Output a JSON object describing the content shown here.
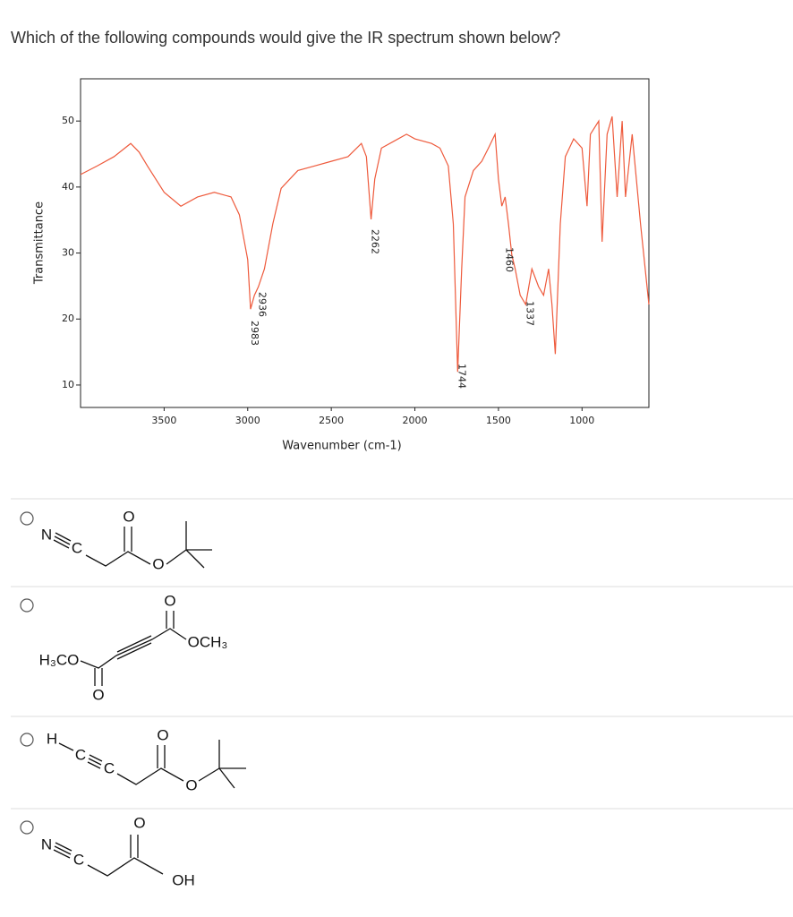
{
  "question": "Which of the following compounds would give the IR spectrum shown below?",
  "chart_data": {
    "type": "line",
    "xlabel": "Wavenumber (cm-1)",
    "ylabel": "Transmittance",
    "x": [
      4000,
      3900,
      3800,
      3700,
      3650,
      3600,
      3500,
      3400,
      3300,
      3200,
      3100,
      3050,
      3000,
      2983,
      2960,
      2936,
      2900,
      2850,
      2800,
      2700,
      2600,
      2500,
      2400,
      2320,
      2290,
      2262,
      2240,
      2200,
      2100,
      2050,
      2000,
      1900,
      1850,
      1800,
      1770,
      1744,
      1720,
      1700,
      1650,
      1600,
      1560,
      1520,
      1500,
      1480,
      1460,
      1440,
      1420,
      1400,
      1370,
      1337,
      1300,
      1260,
      1230,
      1200,
      1180,
      1160,
      1130,
      1100,
      1050,
      1000,
      970,
      950,
      900,
      880,
      850,
      820,
      790,
      760,
      740,
      700,
      650,
      600
    ],
    "series": [
      {
        "color": "#ee5a3c",
        "values": [
          41.9,
          43.2,
          44.6,
          46.6,
          45.3,
          43.2,
          39.2,
          37.1,
          38.5,
          39.2,
          38.5,
          35.8,
          29,
          21.5,
          23.6,
          24.9,
          27.6,
          34.4,
          39.8,
          42.5,
          43.2,
          43.9,
          44.6,
          46.6,
          44.6,
          35.1,
          41.2,
          45.9,
          47.3,
          48,
          47.3,
          46.6,
          45.9,
          43.2,
          34.4,
          12,
          27.6,
          38.5,
          42.5,
          43.9,
          45.9,
          48,
          41.2,
          37.1,
          38.5,
          34.4,
          29.7,
          27.6,
          23.6,
          22.2,
          27.6,
          24.9,
          23.6,
          27.6,
          22.2,
          14.7,
          34.4,
          44.6,
          47.3,
          45.9,
          37.1,
          48,
          50,
          31.7,
          48,
          50.7,
          38.5,
          50,
          38.5,
          48,
          34.4,
          22.2
        ]
      }
    ],
    "xlim": [
      4000,
      600
    ],
    "ylim": [
      6.6,
      56.4
    ],
    "xticks": [
      3500,
      3000,
      2500,
      2000,
      1500,
      1000
    ],
    "yticks": [
      10,
      20,
      30,
      40,
      50
    ],
    "peak_labels": [
      2983,
      2936,
      2262,
      1744,
      1460,
      1337
    ]
  },
  "options": [
    {
      "atoms": [
        "N",
        "C",
        "O",
        "O"
      ]
    },
    {
      "atoms": [
        "H₃CO",
        "O",
        "O",
        "OCH₃"
      ]
    },
    {
      "atoms": [
        "H",
        "C",
        "C",
        "O",
        "O"
      ]
    },
    {
      "atoms": [
        "N",
        "C",
        "O",
        "OH"
      ]
    }
  ]
}
